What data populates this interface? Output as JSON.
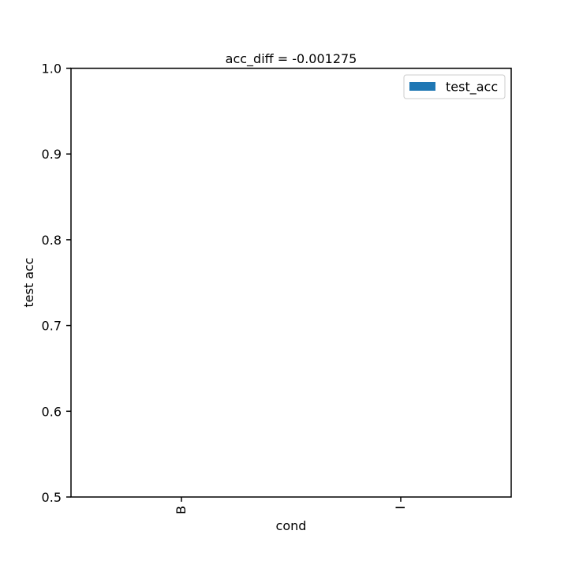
{
  "chart_data": {
    "type": "bar",
    "title": "acc_diff = -0.001275",
    "xlabel": "cond",
    "ylabel": "test acc",
    "categories": [
      "B",
      "I"
    ],
    "series": [
      {
        "name": "test_acc",
        "values": [
          0.5,
          0.5
        ]
      }
    ],
    "ylim": [
      0.5,
      1.0
    ],
    "yticks": [
      "0.5",
      "0.6",
      "0.7",
      "0.8",
      "0.9",
      "1.0"
    ],
    "grid": false,
    "legend_position": "top-right",
    "colors": {
      "test_acc": "#1f77b4",
      "axes": "#000000",
      "background": "#ffffff"
    }
  }
}
